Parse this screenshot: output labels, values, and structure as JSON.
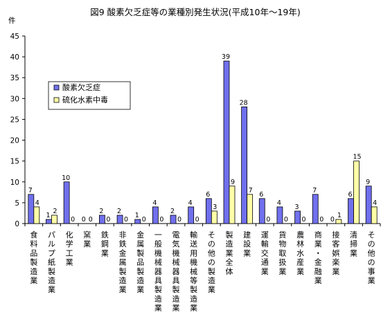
{
  "chart_data": {
    "type": "bar",
    "title": "図9 酸素欠乏症等の業種別発生状況(平成10年～19年)",
    "ylabel": "件",
    "ylim": [
      0,
      45
    ],
    "yticks": [
      0,
      5,
      10,
      15,
      20,
      25,
      30,
      35,
      40,
      45
    ],
    "grid": false,
    "legend_position": "top-left",
    "categories": [
      "食料品製造業",
      "パルプ紙製造業",
      "化学工業",
      "窯業",
      "鉄鋼業",
      "非鉄金属製造業",
      "金属製品製造業",
      "一般機械器具製造業",
      "電気機械器具製造業",
      "輸送用機械等製造業",
      "その他の製造業",
      "製造業全体",
      "建設業",
      "運輸交通業",
      "貨物取扱業",
      "農林水産業",
      "商業・金融業",
      "接客娯楽業",
      "清掃業",
      "その他の事業"
    ],
    "series": [
      {
        "name": "酸素欠乏症",
        "color": "#7070ee",
        "values": [
          7,
          1,
          10,
          0,
          2,
          2,
          1,
          4,
          2,
          4,
          6,
          39,
          28,
          6,
          4,
          3,
          7,
          0,
          6,
          9
        ],
        "labels": [
          "7",
          "1",
          "10",
          "0",
          "2",
          "2",
          "1",
          "4",
          "2",
          "4",
          "6",
          "39",
          "28",
          "6",
          "4",
          "3",
          "7",
          "0",
          "6",
          "9"
        ]
      },
      {
        "name": "硫化水素中毒",
        "color": "#ffffa8",
        "values": [
          4,
          2,
          0,
          0,
          0,
          0,
          0,
          0,
          0,
          0,
          3,
          9,
          7,
          0,
          0,
          0,
          0,
          1,
          15,
          4
        ],
        "labels": [
          "4",
          "2",
          "0",
          "0",
          "0",
          "0",
          "0",
          "0",
          "0",
          "0",
          "3",
          "9",
          "7",
          "0",
          "0",
          "0",
          "0",
          "1",
          "15",
          "4"
        ]
      }
    ]
  }
}
